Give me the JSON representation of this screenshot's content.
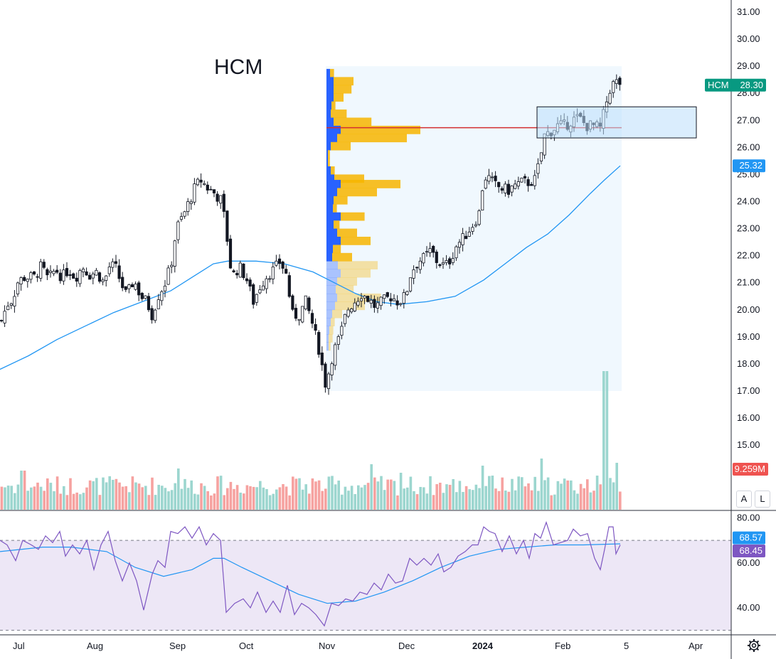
{
  "ticker": "HCM",
  "colors": {
    "up": "#26a69a",
    "down": "#ef5350",
    "ma": "#2196f3",
    "rsi": "#7e57c2",
    "rsi_bg": "#ede7f6",
    "profile_up": "#2962ff",
    "profile_down": "#f7b500",
    "poc": "#d32f2f",
    "box": "#bbdefb",
    "ticker_tag": "#089981"
  },
  "price_axis": {
    "ticks": [
      "31.00",
      "30.00",
      "29.00",
      "28.00",
      "27.00",
      "26.00",
      "25.00",
      "24.00",
      "23.00",
      "22.00",
      "21.00",
      "20.00",
      "19.00",
      "18.00",
      "17.00",
      "16.00",
      "15.00"
    ],
    "ticker_tag": {
      "symbol": "HCM",
      "value": "28.30"
    },
    "ma_tag": "25.32",
    "volume_tag": "9.259M",
    "scale_buttons": [
      "A",
      "L"
    ]
  },
  "rsi_axis": {
    "ticks": [
      "80.00",
      "60.00",
      "40.00"
    ],
    "rsi_tag": "68.57",
    "rsi_ma_tag": "68.45",
    "upper_band": 70,
    "lower_band": 30
  },
  "time_axis": {
    "labels": [
      "Jul",
      "Aug",
      "Sep",
      "Oct",
      "Nov",
      "Dec",
      "2024",
      "Feb",
      "5",
      "Apr"
    ]
  },
  "chart_data": {
    "type": "candlestick",
    "title": "HCM",
    "ylim": [
      16.5,
      31.3
    ],
    "price_anchors": [
      [
        0,
        19.6
      ],
      [
        8,
        20.2
      ],
      [
        16,
        20.4
      ],
      [
        22,
        21.0
      ],
      [
        32,
        21.2
      ],
      [
        46,
        21.2
      ],
      [
        56,
        21.6
      ],
      [
        66,
        21.1
      ],
      [
        76,
        21.5
      ],
      [
        86,
        21.2
      ],
      [
        94,
        21.5
      ],
      [
        104,
        21.2
      ],
      [
        114,
        21.6
      ],
      [
        124,
        21.3
      ],
      [
        134,
        21.4
      ],
      [
        144,
        21.0
      ],
      [
        152,
        21.6
      ],
      [
        160,
        21.6
      ],
      [
        168,
        21.0
      ],
      [
        176,
        20.5
      ],
      [
        186,
        21.1
      ],
      [
        196,
        20.5
      ],
      [
        204,
        20.3
      ],
      [
        212,
        19.8
      ],
      [
        220,
        20.5
      ],
      [
        230,
        21.0
      ],
      [
        238,
        21.6
      ],
      [
        246,
        23.0
      ],
      [
        256,
        23.5
      ],
      [
        264,
        24.0
      ],
      [
        272,
        24.5
      ],
      [
        280,
        24.8
      ],
      [
        290,
        24.5
      ],
      [
        300,
        24.3
      ],
      [
        310,
        24.0
      ],
      [
        318,
        22.5
      ],
      [
        324,
        21.2
      ],
      [
        334,
        21.6
      ],
      [
        344,
        21.2
      ],
      [
        354,
        20.3
      ],
      [
        364,
        20.9
      ],
      [
        374,
        21.3
      ],
      [
        384,
        21.5
      ],
      [
        392,
        21.8
      ],
      [
        402,
        21.2
      ],
      [
        408,
        19.8
      ],
      [
        418,
        19.8
      ],
      [
        428,
        20.3
      ],
      [
        436,
        19.6
      ],
      [
        446,
        18.6
      ],
      [
        456,
        17.2
      ],
      [
        466,
        18.4
      ],
      [
        476,
        19.0
      ],
      [
        486,
        20.0
      ],
      [
        496,
        20.3
      ],
      [
        506,
        20.6
      ],
      [
        516,
        20.4
      ],
      [
        526,
        20.1
      ],
      [
        536,
        20.3
      ],
      [
        548,
        20.5
      ],
      [
        558,
        20.3
      ],
      [
        568,
        20.5
      ],
      [
        576,
        21.4
      ],
      [
        586,
        21.8
      ],
      [
        594,
        21.9
      ],
      [
        604,
        22.2
      ],
      [
        612,
        21.8
      ],
      [
        624,
        21.6
      ],
      [
        632,
        21.9
      ],
      [
        640,
        22.4
      ],
      [
        648,
        22.6
      ],
      [
        656,
        22.9
      ],
      [
        664,
        23.2
      ],
      [
        672,
        23.6
      ],
      [
        678,
        24.9
      ],
      [
        684,
        24.9
      ],
      [
        694,
        24.6
      ],
      [
        702,
        24.5
      ],
      [
        712,
        24.4
      ],
      [
        722,
        24.6
      ],
      [
        732,
        24.7
      ],
      [
        740,
        24.7
      ],
      [
        750,
        24.8
      ],
      [
        758,
        25.6
      ],
      [
        762,
        26.4
      ],
      [
        772,
        26.6
      ],
      [
        782,
        26.8
      ],
      [
        792,
        26.8
      ],
      [
        802,
        27.0
      ],
      [
        812,
        27.1
      ],
      [
        822,
        26.8
      ],
      [
        832,
        26.8
      ],
      [
        842,
        26.7
      ],
      [
        850,
        27.6
      ],
      [
        856,
        28.2
      ],
      [
        862,
        28.4
      ],
      [
        868,
        28.4
      ],
      [
        874,
        28.3
      ]
    ],
    "ma_points": [
      [
        0,
        17.8
      ],
      [
        40,
        18.3
      ],
      [
        80,
        18.9
      ],
      [
        120,
        19.4
      ],
      [
        160,
        19.9
      ],
      [
        200,
        20.3
      ],
      [
        240,
        20.7
      ],
      [
        270,
        21.2
      ],
      [
        300,
        21.7
      ],
      [
        320,
        21.8
      ],
      [
        360,
        21.8
      ],
      [
        400,
        21.7
      ],
      [
        440,
        21.4
      ],
      [
        470,
        21.0
      ],
      [
        500,
        20.6
      ],
      [
        530,
        20.3
      ],
      [
        560,
        20.2
      ],
      [
        600,
        20.3
      ],
      [
        640,
        20.5
      ],
      [
        680,
        21.1
      ],
      [
        710,
        21.7
      ],
      [
        740,
        22.3
      ],
      [
        770,
        22.8
      ],
      [
        800,
        23.5
      ],
      [
        830,
        24.3
      ],
      [
        850,
        24.8
      ],
      [
        872,
        25.32
      ]
    ],
    "volume_profile": {
      "price_range": [
        17.0,
        29.0
      ],
      "poc": 26.73,
      "rows": [
        [
          28.9,
          10,
          4
        ],
        [
          28.6,
          20,
          20
        ],
        [
          28.3,
          20,
          18
        ],
        [
          28.0,
          20,
          10
        ],
        [
          27.7,
          14,
          4
        ],
        [
          27.4,
          12,
          16
        ],
        [
          27.1,
          20,
          38
        ],
        [
          26.8,
          40,
          80
        ],
        [
          26.5,
          30,
          70
        ],
        [
          26.2,
          12,
          20
        ],
        [
          25.9,
          4,
          2
        ],
        [
          25.6,
          4,
          2
        ],
        [
          25.3,
          12,
          4
        ],
        [
          25.0,
          22,
          30
        ],
        [
          24.8,
          40,
          60
        ],
        [
          24.5,
          30,
          40
        ],
        [
          24.2,
          20,
          14
        ],
        [
          23.9,
          18,
          4
        ],
        [
          23.6,
          40,
          24
        ],
        [
          23.3,
          20,
          6
        ],
        [
          23.0,
          30,
          20
        ],
        [
          22.7,
          40,
          30
        ],
        [
          22.4,
          18,
          8
        ],
        [
          22.1,
          16,
          20
        ],
        [
          21.8,
          32,
          40
        ],
        [
          21.5,
          40,
          30
        ],
        [
          21.2,
          30,
          20
        ],
        [
          20.9,
          26,
          18
        ],
        [
          20.6,
          30,
          44
        ],
        [
          20.3,
          24,
          30
        ],
        [
          20.0,
          16,
          10
        ],
        [
          19.7,
          12,
          4
        ],
        [
          19.4,
          8,
          4
        ],
        [
          19.1,
          6,
          4
        ],
        [
          18.8,
          6,
          2
        ]
      ]
    },
    "rsi_ylim": [
      28,
      83
    ],
    "rsi_points": [
      [
        0,
        70
      ],
      [
        10,
        68
      ],
      [
        22,
        61
      ],
      [
        32,
        70
      ],
      [
        44,
        68
      ],
      [
        54,
        66
      ],
      [
        64,
        72
      ],
      [
        74,
        69
      ],
      [
        84,
        74
      ],
      [
        92,
        63
      ],
      [
        102,
        68
      ],
      [
        112,
        64
      ],
      [
        122,
        70
      ],
      [
        132,
        57
      ],
      [
        142,
        68
      ],
      [
        152,
        74
      ],
      [
        162,
        61
      ],
      [
        172,
        52
      ],
      [
        182,
        60
      ],
      [
        192,
        52
      ],
      [
        202,
        39
      ],
      [
        214,
        55
      ],
      [
        222,
        61
      ],
      [
        232,
        58
      ],
      [
        240,
        74
      ],
      [
        250,
        73
      ],
      [
        260,
        76
      ],
      [
        270,
        71
      ],
      [
        280,
        76
      ],
      [
        290,
        68
      ],
      [
        300,
        73
      ],
      [
        310,
        70
      ],
      [
        318,
        38
      ],
      [
        330,
        42
      ],
      [
        342,
        44
      ],
      [
        352,
        40
      ],
      [
        362,
        47
      ],
      [
        374,
        38
      ],
      [
        384,
        43
      ],
      [
        394,
        38
      ],
      [
        404,
        50
      ],
      [
        414,
        37
      ],
      [
        424,
        42
      ],
      [
        434,
        40
      ],
      [
        444,
        37
      ],
      [
        456,
        32
      ],
      [
        466,
        42
      ],
      [
        476,
        41
      ],
      [
        486,
        44
      ],
      [
        496,
        43
      ],
      [
        506,
        47
      ],
      [
        516,
        46
      ],
      [
        526,
        51
      ],
      [
        536,
        48
      ],
      [
        546,
        55
      ],
      [
        556,
        51
      ],
      [
        566,
        52
      ],
      [
        576,
        62
      ],
      [
        586,
        59
      ],
      [
        596,
        62
      ],
      [
        606,
        59
      ],
      [
        616,
        64
      ],
      [
        624,
        56
      ],
      [
        634,
        58
      ],
      [
        644,
        63
      ],
      [
        654,
        65
      ],
      [
        664,
        68
      ],
      [
        672,
        68
      ],
      [
        680,
        76
      ],
      [
        688,
        74
      ],
      [
        696,
        73
      ],
      [
        706,
        65
      ],
      [
        716,
        72
      ],
      [
        726,
        64
      ],
      [
        736,
        70
      ],
      [
        744,
        62
      ],
      [
        752,
        73
      ],
      [
        760,
        71
      ],
      [
        768,
        78
      ],
      [
        778,
        68
      ],
      [
        788,
        69
      ],
      [
        798,
        70
      ],
      [
        806,
        75
      ],
      [
        816,
        72
      ],
      [
        826,
        73
      ],
      [
        836,
        62
      ],
      [
        844,
        57
      ],
      [
        850,
        66
      ],
      [
        856,
        76
      ],
      [
        862,
        76
      ],
      [
        866,
        64
      ],
      [
        872,
        68
      ]
    ],
    "rsi_ma_points": [
      [
        0,
        65
      ],
      [
        60,
        67
      ],
      [
        100,
        67
      ],
      [
        150,
        65
      ],
      [
        190,
        58
      ],
      [
        230,
        54
      ],
      [
        270,
        57
      ],
      [
        300,
        62
      ],
      [
        315,
        62
      ],
      [
        340,
        58
      ],
      [
        380,
        52
      ],
      [
        420,
        46
      ],
      [
        460,
        42
      ],
      [
        500,
        43
      ],
      [
        540,
        47
      ],
      [
        580,
        52
      ],
      [
        620,
        58
      ],
      [
        660,
        63
      ],
      [
        700,
        66
      ],
      [
        740,
        67
      ],
      [
        780,
        68
      ],
      [
        820,
        68
      ],
      [
        872,
        68.45
      ]
    ],
    "volume_spikes": [
      [
        850,
        100
      ],
      [
        30,
        55
      ],
      [
        248,
        58
      ],
      [
        436,
        44
      ],
      [
        520,
        64
      ],
      [
        560,
        52
      ],
      [
        676,
        62
      ],
      [
        688,
        48
      ],
      [
        758,
        72
      ],
      [
        836,
        48
      ],
      [
        866,
        66
      ]
    ]
  }
}
